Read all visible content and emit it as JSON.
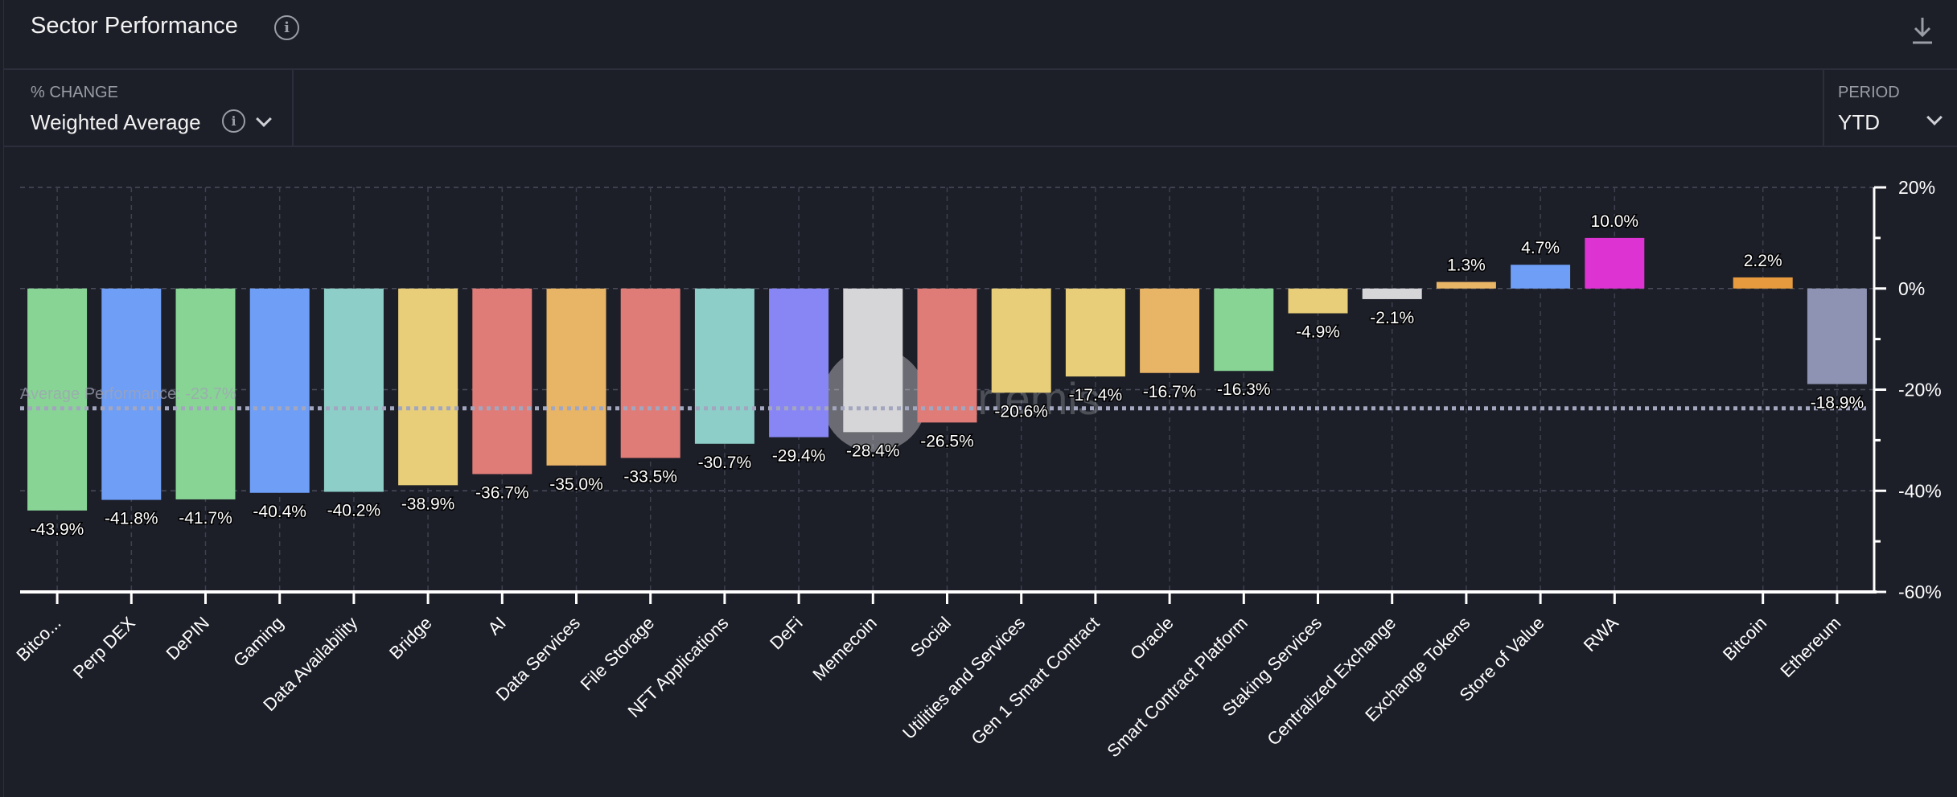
{
  "header": {
    "title": "Sector Performance",
    "info_icon": "info-icon",
    "download_icon": "download-icon"
  },
  "controls": {
    "change": {
      "label": "% CHANGE",
      "value": "Weighted Average"
    },
    "period": {
      "label": "PERIOD",
      "value": "YTD"
    }
  },
  "watermark": "Artemis",
  "chart_data": {
    "type": "bar",
    "categories": [
      "Bitco...",
      "Perp DEX",
      "DePIN",
      "Gaming",
      "Data Availability",
      "Bridge",
      "AI",
      "Data Services",
      "File Storage",
      "NFT Applications",
      "DeFi",
      "Memecoin",
      "Social",
      "Utilities and Services",
      "Gen 1 Smart Contract",
      "Oracle",
      "Smart Contract Platform",
      "Staking Services",
      "Centralized Exchange",
      "Exchange Tokens",
      "Store of Value",
      "RWA",
      "Bitcoin",
      "Ethereum"
    ],
    "values": [
      -43.9,
      -41.8,
      -41.7,
      -40.4,
      -40.2,
      -38.9,
      -36.7,
      -35.0,
      -33.5,
      -30.7,
      -29.4,
      -28.4,
      -26.5,
      -20.6,
      -17.4,
      -16.7,
      -16.3,
      -4.9,
      -2.1,
      1.3,
      4.7,
      10.0,
      2.2,
      -18.9
    ],
    "value_labels": [
      "-43.9%",
      "-41.8%",
      "-41.7%",
      "-40.4%",
      "-40.2%",
      "-38.9%",
      "-36.7%",
      "-35.0%",
      "-33.5%",
      "-30.7%",
      "-29.4%",
      "-28.4%",
      "-26.5%",
      "-20.6%",
      "-17.4%",
      "-16.7%",
      "-16.3%",
      "-4.9%",
      "-2.1%",
      "1.3%",
      "4.7%",
      "10.0%",
      "2.2%",
      "-18.9%"
    ],
    "colors": [
      "#88d495",
      "#6e9ef6",
      "#88d495",
      "#6e9ef6",
      "#8dcfc8",
      "#e8ce78",
      "#e07c77",
      "#e8b466",
      "#e07c77",
      "#8dcfc8",
      "#8886f5",
      "#d6d6d8",
      "#e07c77",
      "#e8ce78",
      "#e8ce78",
      "#e8b466",
      "#88d495",
      "#e8ce78",
      "#d6d6d8",
      "#e8b466",
      "#6e9ef6",
      "#dd33d3",
      "#e89b3e",
      "#8e93b3"
    ],
    "ylim": [
      -60,
      20
    ],
    "yticks": [
      20,
      0,
      -20,
      -40,
      -60
    ],
    "ytick_labels": [
      "20%",
      "0%",
      "-20%",
      "-40%",
      "-60%"
    ],
    "y_axis_position": "right",
    "grid": true,
    "average": {
      "value": -23.7,
      "label": "Average Performance: -23.7%"
    }
  }
}
